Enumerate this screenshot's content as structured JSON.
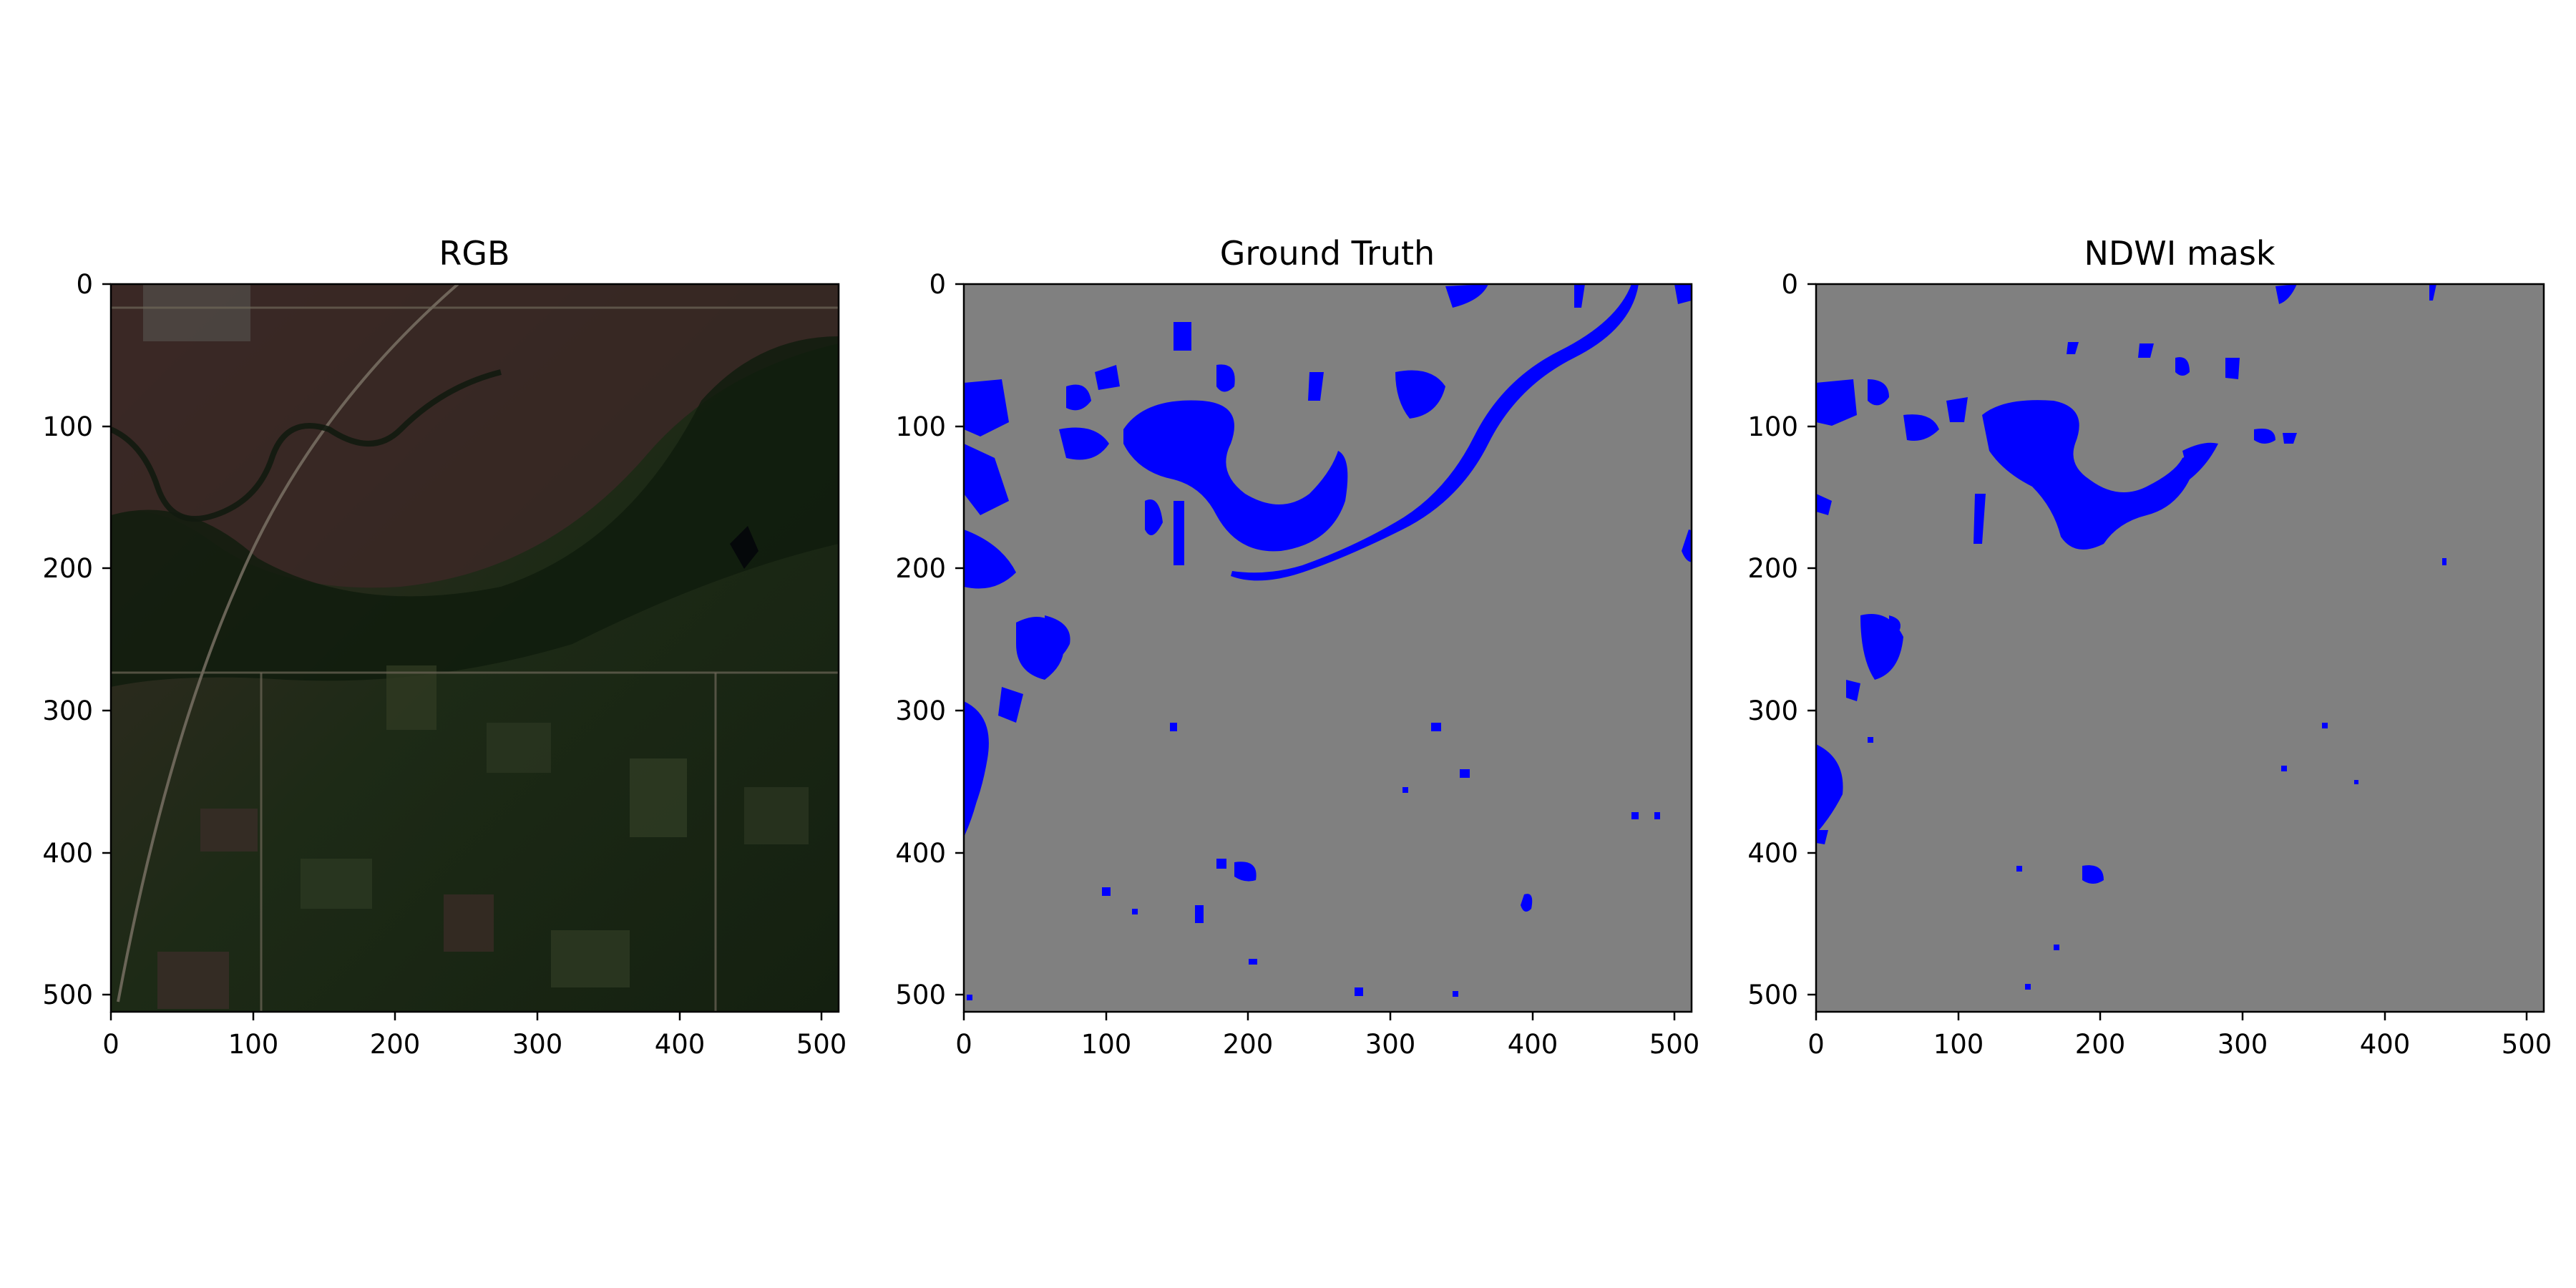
{
  "figure": {
    "panels": [
      {
        "title": "RGB",
        "x_ticks": [
          "0",
          "100",
          "200",
          "300",
          "400",
          "500"
        ],
        "y_ticks": [
          "0",
          "100",
          "200",
          "300",
          "400",
          "500"
        ],
        "background": "#1a2212"
      },
      {
        "title": "Ground Truth",
        "x_ticks": [
          "0",
          "100",
          "200",
          "300",
          "400",
          "500"
        ],
        "y_ticks": [
          "0",
          "100",
          "200",
          "300",
          "400",
          "500"
        ],
        "background": "#808080",
        "water_color": "#0000ff"
      },
      {
        "title": "NDWI mask",
        "x_ticks": [
          "0",
          "100",
          "200",
          "300",
          "400",
          "500"
        ],
        "y_ticks": [
          "0",
          "100",
          "200",
          "300",
          "400",
          "500"
        ],
        "background": "#808080",
        "water_color": "#0000ff"
      }
    ]
  }
}
